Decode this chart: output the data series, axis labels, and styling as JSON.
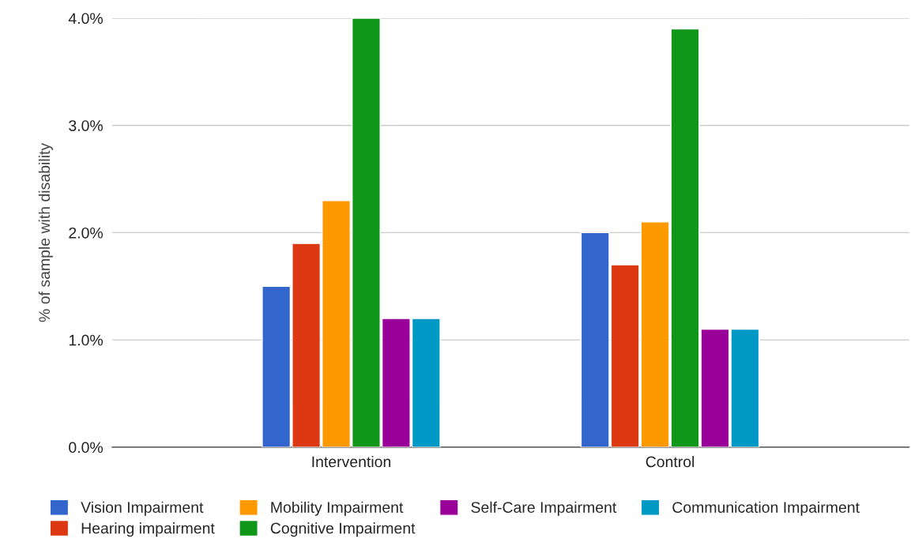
{
  "chart_data": {
    "type": "bar",
    "ylabel": "% of sample with disability",
    "categories": [
      "Intervention",
      "Control"
    ],
    "series": [
      {
        "name": "Vision Impairment",
        "color": "#3366cc",
        "values": [
          1.5,
          2.0
        ]
      },
      {
        "name": "Hearing impairment",
        "color": "#dc3912",
        "values": [
          1.9,
          1.7
        ]
      },
      {
        "name": "Mobility Impairment",
        "color": "#ff9900",
        "values": [
          2.3,
          2.1
        ]
      },
      {
        "name": "Cognitive Impairment",
        "color": "#109618",
        "values": [
          4.0,
          3.9
        ]
      },
      {
        "name": "Self-Care Impairment",
        "color": "#990099",
        "values": [
          1.2,
          1.1
        ]
      },
      {
        "name": "Communication Impairment",
        "color": "#0099c6",
        "values": [
          1.2,
          1.1
        ]
      }
    ],
    "ylim": [
      0,
      4.0
    ],
    "yticks": [
      {
        "value": 0,
        "label": "0.0%"
      },
      {
        "value": 1,
        "label": "1.0%"
      },
      {
        "value": 2,
        "label": "2.0%"
      },
      {
        "value": 3,
        "label": "3.0%"
      },
      {
        "value": 4,
        "label": "4.0%"
      }
    ],
    "grid": "y",
    "legend": "bottom"
  }
}
